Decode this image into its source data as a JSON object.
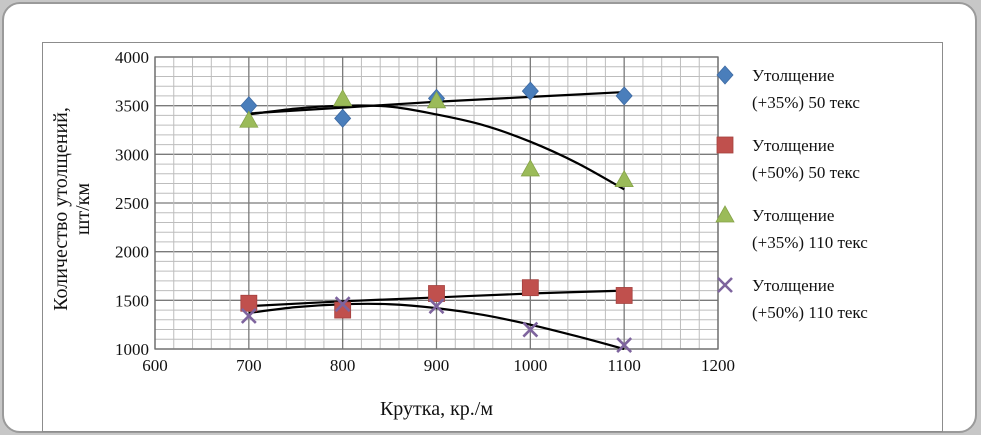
{
  "chart_data": {
    "type": "scatter",
    "xlabel": "Крутка, кр./м",
    "ylabel_line1": "Количество утолщений,",
    "ylabel_line2": "шт/км",
    "xlim": [
      600,
      1200
    ],
    "ylim": [
      1000,
      4000
    ],
    "x_ticks": [
      "600",
      "700",
      "800",
      "900",
      "1000",
      "1100",
      "1200"
    ],
    "y_ticks": [
      "1000",
      "1500",
      "2000",
      "2500",
      "3000",
      "3500",
      "4000"
    ],
    "grid": true,
    "legend_position": "right",
    "series": [
      {
        "legend_line1": "Утолщение",
        "legend_line2": "(+35%) 50 текс",
        "marker": "diamond",
        "color": "#4a7ebb",
        "x": [
          700,
          800,
          900,
          1000,
          1100
        ],
        "y": [
          3500,
          3370,
          3575,
          3650,
          3600
        ],
        "trend": {
          "x": [
            700,
            800,
            900,
            1000,
            1100
          ],
          "y": [
            3420,
            3480,
            3540,
            3590,
            3640
          ]
        }
      },
      {
        "legend_line1": "Утолщение",
        "legend_line2": "(+50%) 50 текс",
        "marker": "square",
        "color": "#c0504d",
        "x": [
          700,
          800,
          900,
          1000,
          1100
        ],
        "y": [
          1470,
          1400,
          1570,
          1630,
          1550
        ],
        "trend": {
          "x": [
            700,
            800,
            900,
            1000,
            1100
          ],
          "y": [
            1440,
            1490,
            1530,
            1570,
            1600
          ]
        }
      },
      {
        "legend_line1": "Утолщение",
        "legend_line2": "(+35%) 110 текс",
        "marker": "triangle",
        "color": "#9bbb59",
        "x": [
          700,
          800,
          900,
          1000,
          1100
        ],
        "y": [
          3350,
          3570,
          3550,
          2850,
          2740
        ],
        "trend": {
          "x": [
            700,
            750,
            800,
            850,
            900,
            950,
            1000,
            1050,
            1100
          ],
          "y": [
            3410,
            3470,
            3500,
            3490,
            3410,
            3300,
            3130,
            2910,
            2640
          ]
        }
      },
      {
        "legend_line1": "Утолщение",
        "legend_line2": "(+50%) 110 текс",
        "marker": "x",
        "color": "#7e649e",
        "x": [
          700,
          800,
          900,
          1000,
          1100
        ],
        "y": [
          1340,
          1460,
          1440,
          1200,
          1040
        ],
        "trend": {
          "x": [
            700,
            750,
            800,
            850,
            900,
            950,
            1000,
            1050,
            1100
          ],
          "y": [
            1370,
            1430,
            1460,
            1460,
            1420,
            1350,
            1250,
            1130,
            1000
          ]
        }
      }
    ]
  }
}
